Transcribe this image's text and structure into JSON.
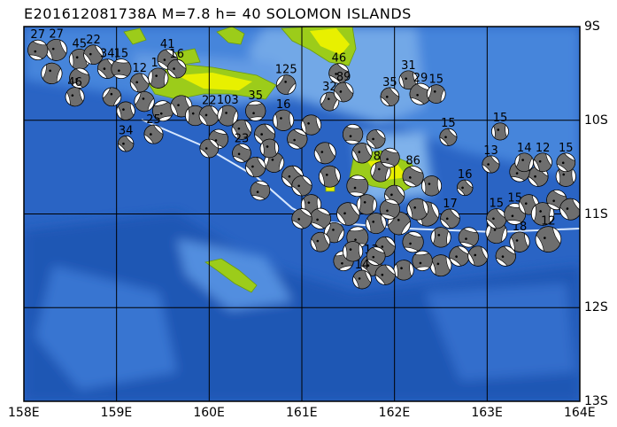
{
  "title": "E201612081738A  M=7.8  h= 40  SOLOMON ISLANDS",
  "colors": {
    "ocean_deep": "#1e4fb0",
    "ocean": "#2f6fd0",
    "ocean_shallow": "#7fb4ee",
    "land": "#9ccc1a",
    "land_high": "#e8f000",
    "trench": "#d8e8ff",
    "compressional": "#6e6e6e",
    "dilatational": "#ffffff"
  },
  "map": {
    "lon_range": [
      158,
      164
    ],
    "lat_range": [
      -9,
      -13
    ],
    "x_ticks": [
      "158E",
      "159E",
      "160E",
      "161E",
      "162E",
      "163E",
      "164E"
    ],
    "y_ticks": [
      "9S",
      "10S",
      "11S",
      "12S",
      "13S"
    ]
  },
  "events": [
    [
      158.35,
      9.25,
      7.5,
      "27",
      20
    ],
    [
      158.15,
      9.25,
      7,
      "27",
      -30
    ],
    [
      158.6,
      9.35,
      7.2,
      "45",
      40
    ],
    [
      158.75,
      9.3,
      6.8,
      "22",
      10
    ],
    [
      158.3,
      9.5,
      7.3,
      "",
      60
    ],
    [
      158.6,
      9.55,
      7,
      "",
      -20
    ],
    [
      158.9,
      9.45,
      6.8,
      "34",
      0
    ],
    [
      158.55,
      9.75,
      6.6,
      "46",
      30
    ],
    [
      158.95,
      9.75,
      6.5,
      "",
      80
    ],
    [
      159.05,
      9.45,
      6.9,
      "15",
      -40
    ],
    [
      159.25,
      9.6,
      6.6,
      "12",
      10
    ],
    [
      159.45,
      9.55,
      7,
      "15",
      50
    ],
    [
      159.55,
      9.35,
      7,
      "41",
      -10
    ],
    [
      159.65,
      9.45,
      6.5,
      "16",
      0
    ],
    [
      159.1,
      9.9,
      6.4,
      "",
      30
    ],
    [
      159.3,
      9.8,
      7,
      "",
      70
    ],
    [
      159.5,
      9.9,
      7.2,
      "",
      -60
    ],
    [
      159.7,
      9.85,
      7.5,
      "",
      20
    ],
    [
      159.85,
      9.95,
      7,
      "",
      45
    ],
    [
      159.4,
      10.15,
      6.6,
      "25",
      0
    ],
    [
      160.0,
      9.95,
      7,
      "22",
      10
    ],
    [
      160.1,
      10.2,
      6.8,
      "",
      -30
    ],
    [
      160.2,
      9.95,
      7.2,
      "103",
      60
    ],
    [
      160.35,
      10.1,
      6.9,
      "",
      20
    ],
    [
      160.5,
      9.9,
      7,
      "35",
      -50
    ],
    [
      160.6,
      10.15,
      7.2,
      "",
      0
    ],
    [
      160.8,
      10.0,
      7.3,
      "16",
      40
    ],
    [
      160.83,
      9.62,
      6.8,
      "125",
      80
    ],
    [
      160.95,
      10.2,
      7,
      "",
      -20
    ],
    [
      161.1,
      10.05,
      7,
      "",
      30
    ],
    [
      161.3,
      9.8,
      6.5,
      "32",
      70
    ],
    [
      161.4,
      9.5,
      7,
      "46",
      -10
    ],
    [
      161.45,
      9.7,
      6.8,
      "89",
      10
    ],
    [
      161.55,
      10.15,
      7,
      "",
      -40
    ],
    [
      161.25,
      10.35,
      7.5,
      "",
      20
    ],
    [
      160.7,
      10.45,
      7,
      "",
      60
    ],
    [
      160.9,
      10.6,
      7.5,
      "",
      0
    ],
    [
      160.55,
      10.75,
      6.8,
      "",
      -30
    ],
    [
      161.1,
      10.9,
      7,
      "",
      40
    ],
    [
      161.2,
      11.05,
      7.3,
      "",
      -20
    ],
    [
      161.35,
      11.2,
      7,
      "",
      70
    ],
    [
      161.5,
      11.0,
      8,
      "",
      10
    ],
    [
      161.6,
      11.25,
      7.5,
      "",
      -50
    ],
    [
      161.8,
      11.1,
      7.2,
      "",
      30
    ],
    [
      161.9,
      11.35,
      7,
      "",
      0
    ],
    [
      162.05,
      11.1,
      8,
      "",
      80
    ],
    [
      162.2,
      11.3,
      7.3,
      "",
      -30
    ],
    [
      162.35,
      11.0,
      8.5,
      "",
      20
    ],
    [
      162.5,
      11.25,
      7,
      "",
      50
    ],
    [
      162.7,
      11.45,
      7,
      "",
      -10
    ],
    [
      162.1,
      11.6,
      7,
      "",
      40
    ],
    [
      161.75,
      11.55,
      7.3,
      "13",
      0
    ],
    [
      161.45,
      11.5,
      7,
      "",
      -60
    ],
    [
      161.2,
      11.3,
      6.8,
      "",
      20
    ],
    [
      161.0,
      10.7,
      7,
      "",
      0
    ],
    [
      161.3,
      10.6,
      7.5,
      "",
      30
    ],
    [
      161.6,
      10.7,
      7.5,
      "",
      -40
    ],
    [
      161.85,
      10.55,
      7,
      "87",
      60
    ],
    [
      162.0,
      10.8,
      7,
      "",
      10
    ],
    [
      162.2,
      10.6,
      7.3,
      "86",
      -20
    ],
    [
      162.4,
      10.7,
      7,
      "",
      40
    ],
    [
      162.6,
      11.05,
      6.8,
      "17",
      0
    ],
    [
      162.8,
      11.25,
      7,
      "",
      -30
    ],
    [
      162.9,
      11.45,
      7,
      "",
      20
    ],
    [
      163.1,
      11.2,
      7.5,
      "",
      60
    ],
    [
      163.2,
      11.45,
      7,
      "",
      -10
    ],
    [
      163.35,
      11.3,
      7,
      "18",
      30
    ],
    [
      163.1,
      11.05,
      7,
      "15",
      0
    ],
    [
      163.3,
      11.0,
      7.5,
      "15",
      -40
    ],
    [
      163.45,
      10.9,
      7,
      "",
      20
    ],
    [
      163.6,
      11.0,
      8,
      "",
      50
    ],
    [
      163.75,
      10.85,
      7,
      "",
      -20
    ],
    [
      163.9,
      10.95,
      7.5,
      "",
      10
    ],
    [
      163.85,
      10.6,
      7,
      "15",
      40
    ],
    [
      163.55,
      10.6,
      7,
      "",
      0
    ],
    [
      163.35,
      10.55,
      7,
      "",
      -30
    ],
    [
      163.4,
      10.45,
      6.5,
      "14",
      60
    ],
    [
      163.6,
      10.45,
      6.5,
      "12",
      20
    ],
    [
      163.85,
      10.45,
      6.5,
      "15",
      -10
    ],
    [
      162.5,
      11.55,
      7.5,
      "",
      30
    ],
    [
      162.3,
      11.5,
      7,
      "",
      -50
    ],
    [
      161.9,
      11.65,
      7,
      "",
      0
    ],
    [
      161.65,
      11.7,
      6.5,
      "14",
      20
    ],
    [
      161.8,
      11.45,
      6.5,
      "",
      -20
    ],
    [
      161.55,
      11.4,
      7,
      "",
      40
    ],
    [
      161.0,
      11.05,
      7,
      "",
      -10
    ],
    [
      161.7,
      10.9,
      7,
      "",
      50
    ],
    [
      162.25,
      10.95,
      7.5,
      "",
      30
    ],
    [
      161.95,
      10.95,
      7,
      "",
      -30
    ],
    [
      162.15,
      9.57,
      6.5,
      "31",
      30
    ],
    [
      162.28,
      9.72,
      7.5,
      "29",
      -20
    ],
    [
      162.45,
      9.72,
      6.5,
      "15",
      60
    ],
    [
      161.95,
      9.75,
      6.5,
      "35",
      0
    ],
    [
      162.58,
      10.18,
      6,
      "15",
      0
    ],
    [
      163.14,
      10.12,
      6,
      "15",
      40
    ],
    [
      163.04,
      10.47,
      6,
      "13",
      0
    ],
    [
      162.76,
      10.72,
      5.5,
      "16",
      0
    ],
    [
      163.66,
      11.27,
      9,
      "12",
      20
    ],
    [
      159.1,
      10.25,
      5.5,
      "34",
      0
    ],
    [
      160.0,
      10.3,
      6.5,
      "",
      0
    ],
    [
      160.35,
      10.35,
      6.5,
      "23",
      -20
    ],
    [
      160.5,
      10.5,
      7,
      "",
      10
    ],
    [
      160.65,
      10.3,
      6.5,
      "",
      40
    ],
    [
      161.8,
      10.2,
      6.5,
      "",
      0
    ],
    [
      161.65,
      10.35,
      7,
      "",
      20
    ],
    [
      161.95,
      10.4,
      6.8,
      "",
      -30
    ]
  ]
}
